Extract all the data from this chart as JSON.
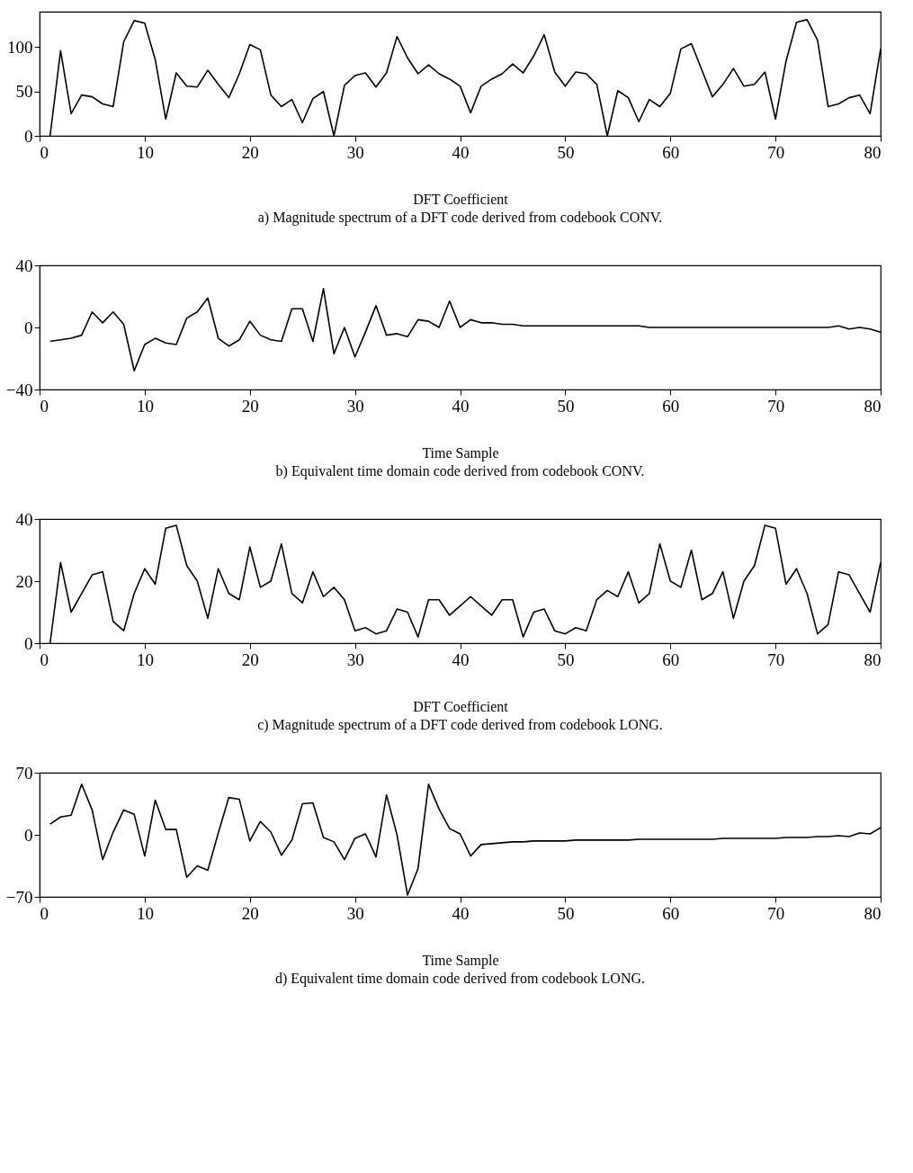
{
  "chart_data": [
    {
      "type": "line",
      "xlabel": "DFT Coefficient",
      "annotations": [
        "a) Magnitude spectrum of a DFT code derived from codebook CONV."
      ],
      "xlim": [
        0,
        80
      ],
      "xticks": [
        0,
        10,
        20,
        30,
        40,
        50,
        60,
        70,
        80
      ],
      "ylim": [
        0,
        140
      ],
      "yticks": [
        0,
        50,
        100
      ],
      "grid": false,
      "marker": "none",
      "line_style": "solid",
      "series": [
        {
          "color": "#000000",
          "x": [
            1,
            2,
            3,
            4,
            5,
            6,
            7,
            8,
            9,
            10,
            11,
            12,
            13,
            14,
            15,
            16,
            17,
            18,
            19,
            20,
            21,
            22,
            23,
            24,
            25,
            26,
            27,
            28,
            29,
            30,
            31,
            32,
            33,
            34,
            35,
            36,
            37,
            38,
            39,
            40,
            41,
            42,
            43,
            44,
            45,
            46,
            47,
            48,
            49,
            50,
            51,
            52,
            53,
            54,
            55,
            56,
            57,
            58,
            59,
            60,
            61,
            62,
            63,
            64,
            65,
            66,
            67,
            68,
            69,
            70,
            71,
            72,
            73,
            74,
            75,
            76,
            77,
            78,
            79,
            80
          ],
          "values": [
            0,
            96,
            25,
            46,
            44,
            36,
            33,
            106,
            130,
            127,
            86,
            19,
            71,
            56,
            55,
            74,
            58,
            43,
            70,
            103,
            97,
            46,
            33,
            41,
            15,
            42,
            50,
            0,
            57,
            68,
            71,
            55,
            71,
            112,
            88,
            70,
            80,
            70,
            64,
            56,
            26,
            56,
            64,
            70,
            81,
            71,
            90,
            114,
            72,
            56,
            72,
            70,
            58,
            0,
            51,
            43,
            16,
            41,
            33,
            48,
            98,
            104,
            74,
            44,
            58,
            76,
            56,
            58,
            72,
            19,
            84,
            128,
            131,
            108,
            33,
            36,
            43,
            46,
            25,
            98
          ]
        }
      ]
    },
    {
      "type": "line",
      "xlabel": "Time Sample",
      "annotations": [
        "b) Equivalent time domain code derived from codebook CONV."
      ],
      "xlim": [
        0,
        80
      ],
      "xticks": [
        0,
        10,
        20,
        30,
        40,
        50,
        60,
        70,
        80
      ],
      "ylim": [
        -40,
        40
      ],
      "yticks": [
        -40,
        0,
        40
      ],
      "grid": false,
      "marker": "none",
      "line_style": "solid",
      "series": [
        {
          "color": "#000000",
          "x": [
            1,
            2,
            3,
            4,
            5,
            6,
            7,
            8,
            9,
            10,
            11,
            12,
            13,
            14,
            15,
            16,
            17,
            18,
            19,
            20,
            21,
            22,
            23,
            24,
            25,
            26,
            27,
            28,
            29,
            30,
            31,
            32,
            33,
            34,
            35,
            36,
            37,
            38,
            39,
            40,
            41,
            42,
            43,
            44,
            45,
            46,
            47,
            48,
            49,
            50,
            51,
            52,
            53,
            54,
            55,
            56,
            57,
            58,
            59,
            60,
            61,
            62,
            63,
            64,
            65,
            66,
            67,
            68,
            69,
            70,
            71,
            72,
            73,
            74,
            75,
            76,
            77,
            78,
            79,
            80
          ],
          "values": [
            -9,
            -8,
            -7,
            -5,
            10,
            3,
            10,
            2,
            -28,
            -11,
            -7,
            -10,
            -11,
            6,
            10,
            19,
            -7,
            -12,
            -8,
            4,
            -5,
            -8,
            -9,
            12,
            12,
            -9,
            25,
            -17,
            0,
            -19,
            -3,
            14,
            -5,
            -4,
            -6,
            5,
            4,
            0,
            17,
            0,
            5,
            3,
            3,
            2,
            2,
            1,
            1,
            1,
            1,
            1,
            1,
            1,
            1,
            1,
            1,
            1,
            1,
            0,
            0,
            0,
            0,
            0,
            0,
            0,
            0,
            0,
            0,
            0,
            0,
            0,
            0,
            0,
            0,
            0,
            0,
            1,
            -1,
            0,
            -1,
            -3
          ]
        }
      ]
    },
    {
      "type": "line",
      "xlabel": "DFT Coefficient",
      "annotations": [
        "c) Magnitude spectrum of a DFT code derived from codebook LONG."
      ],
      "xlim": [
        0,
        80
      ],
      "xticks": [
        0,
        10,
        20,
        30,
        40,
        50,
        60,
        70,
        80
      ],
      "ylim": [
        0,
        40
      ],
      "yticks": [
        0,
        20,
        40
      ],
      "grid": false,
      "marker": "none",
      "line_style": "solid",
      "series": [
        {
          "color": "#000000",
          "x": [
            1,
            2,
            3,
            4,
            5,
            6,
            7,
            8,
            9,
            10,
            11,
            12,
            13,
            14,
            15,
            16,
            17,
            18,
            19,
            20,
            21,
            22,
            23,
            24,
            25,
            26,
            27,
            28,
            29,
            30,
            31,
            32,
            33,
            34,
            35,
            36,
            37,
            38,
            39,
            40,
            41,
            42,
            43,
            44,
            45,
            46,
            47,
            48,
            49,
            50,
            51,
            52,
            53,
            54,
            55,
            56,
            57,
            58,
            59,
            60,
            61,
            62,
            63,
            64,
            65,
            66,
            67,
            68,
            69,
            70,
            71,
            72,
            73,
            74,
            75,
            76,
            77,
            78,
            79,
            80
          ],
          "values": [
            0,
            26,
            10,
            16,
            22,
            23,
            7,
            4,
            16,
            24,
            19,
            37,
            38,
            25,
            20,
            8,
            24,
            16,
            14,
            31,
            18,
            20,
            32,
            16,
            13,
            23,
            15,
            18,
            14,
            4,
            5,
            3,
            4,
            11,
            10,
            2,
            14,
            14,
            9,
            12,
            15,
            12,
            9,
            14,
            14,
            2,
            10,
            11,
            4,
            3,
            5,
            4,
            14,
            17,
            15,
            23,
            13,
            16,
            32,
            20,
            18,
            30,
            14,
            16,
            23,
            8,
            20,
            25,
            38,
            37,
            19,
            24,
            16,
            3,
            6,
            23,
            22,
            16,
            10,
            26
          ]
        }
      ]
    },
    {
      "type": "line",
      "xlabel": "Time Sample",
      "annotations": [
        "d) Equivalent time domain code derived from codebook LONG."
      ],
      "xlim": [
        0,
        80
      ],
      "xticks": [
        0,
        10,
        20,
        30,
        40,
        50,
        60,
        70,
        80
      ],
      "ylim": [
        -70,
        70
      ],
      "yticks": [
        -70,
        0,
        70
      ],
      "grid": false,
      "marker": "none",
      "line_style": "solid",
      "series": [
        {
          "color": "#000000",
          "x": [
            1,
            2,
            3,
            4,
            5,
            6,
            7,
            8,
            9,
            10,
            11,
            12,
            13,
            14,
            15,
            16,
            17,
            18,
            19,
            20,
            21,
            22,
            23,
            24,
            25,
            26,
            27,
            28,
            29,
            30,
            31,
            32,
            33,
            34,
            35,
            36,
            37,
            38,
            39,
            40,
            41,
            42,
            43,
            44,
            45,
            46,
            47,
            48,
            49,
            50,
            51,
            52,
            53,
            54,
            55,
            56,
            57,
            58,
            59,
            60,
            61,
            62,
            63,
            64,
            65,
            66,
            67,
            68,
            69,
            70,
            71,
            72,
            73,
            74,
            75,
            76,
            77,
            78,
            79,
            80
          ],
          "values": [
            12,
            20,
            22,
            57,
            28,
            -28,
            3,
            28,
            23,
            -24,
            39,
            6,
            6,
            -48,
            -35,
            -40,
            2,
            42,
            40,
            -7,
            15,
            3,
            -23,
            -6,
            35,
            36,
            -3,
            -8,
            -28,
            -4,
            1,
            -25,
            45,
            0,
            -68,
            -38,
            57,
            29,
            7,
            1,
            -24,
            -11,
            -10,
            -9,
            -8,
            -8,
            -7,
            -7,
            -7,
            -7,
            -6,
            -6,
            -6,
            -6,
            -6,
            -6,
            -5,
            -5,
            -5,
            -5,
            -5,
            -5,
            -5,
            -5,
            -4,
            -4,
            -4,
            -4,
            -4,
            -4,
            -3,
            -3,
            -3,
            -2,
            -2,
            -1,
            -2,
            2,
            1,
            8
          ]
        }
      ]
    }
  ]
}
